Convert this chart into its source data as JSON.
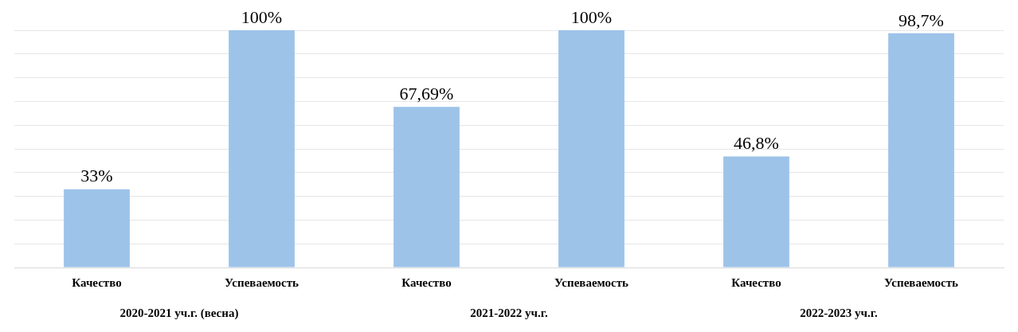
{
  "chart_data": {
    "type": "bar",
    "categories": [
      "Качество",
      "Успеваемость",
      "Качество",
      "Успеваемость",
      "Качество",
      "Успеваемость"
    ],
    "values": [
      33,
      100,
      67.69,
      100,
      46.8,
      98.7
    ],
    "value_labels": [
      "33%",
      "100%",
      "67,69%",
      "100%",
      "46,8%",
      "98,7%"
    ],
    "color": "#9dc3e9",
    "grid": "y",
    "legend": false,
    "annotations": [
      "2020-2021 уч.г. (весна)",
      "2021-2022 уч.г.",
      "2022-2023 уч.г."
    ]
  }
}
